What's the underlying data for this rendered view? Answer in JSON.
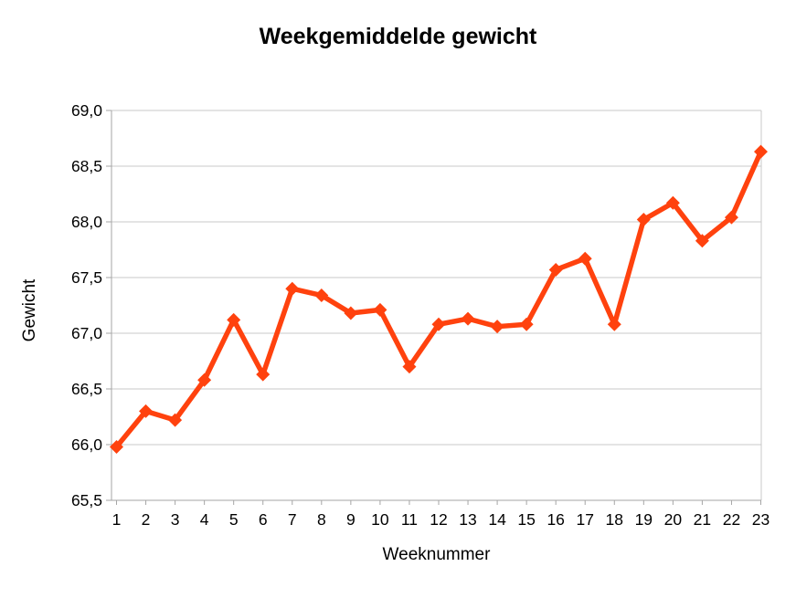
{
  "chart_data": {
    "type": "line",
    "title": "Weekgemiddelde gewicht",
    "xlabel": "Weeknummer",
    "ylabel": "Gewicht",
    "categories": [
      "1",
      "2",
      "3",
      "4",
      "5",
      "6",
      "7",
      "8",
      "9",
      "10",
      "11",
      "12",
      "13",
      "14",
      "15",
      "16",
      "17",
      "18",
      "19",
      "20",
      "21",
      "22",
      "23"
    ],
    "series": [
      {
        "name": "Gewicht",
        "values": [
          65.98,
          66.3,
          66.22,
          66.58,
          67.12,
          66.63,
          67.4,
          67.34,
          67.18,
          67.21,
          66.7,
          67.08,
          67.13,
          67.06,
          67.08,
          67.57,
          67.67,
          67.08,
          68.02,
          68.17,
          67.83,
          68.04,
          68.63
        ]
      }
    ],
    "ylim": [
      65.5,
      69.0
    ],
    "y_tick_step": 0.5,
    "y_tick_labels": [
      "65,5",
      "66,0",
      "66,5",
      "67,0",
      "67,5",
      "68,0",
      "68,5",
      "69,0"
    ],
    "grid": "horizontal",
    "legend": "none",
    "marker": "diamond",
    "decimal_separator": ","
  },
  "colors": {
    "series": "#ff420e",
    "gridline": "#c9c9c9",
    "axis": "#a6a6a6",
    "text": "#000000",
    "background": "#ffffff"
  }
}
